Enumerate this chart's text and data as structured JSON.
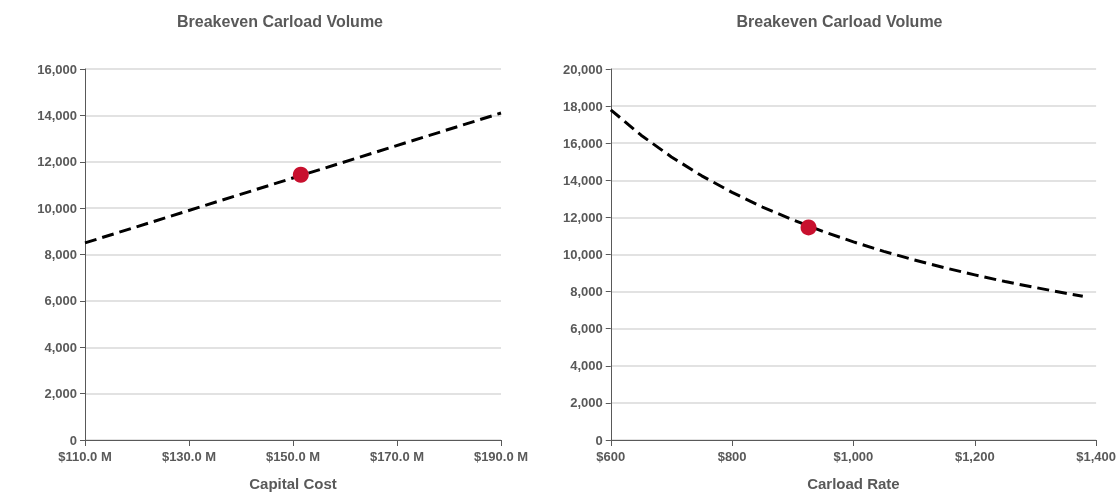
{
  "chart_data": [
    {
      "type": "line",
      "title": "Breakeven Carload Volume",
      "xlabel": "Capital Cost",
      "xlim": [
        110,
        190
      ],
      "xticks": [
        {
          "value": 110,
          "label": "$110.0 M"
        },
        {
          "value": 130,
          "label": "$130.0 M"
        },
        {
          "value": 150,
          "label": "$150.0 M"
        },
        {
          "value": 170,
          "label": "$170.0 M"
        },
        {
          "value": 190,
          "label": "$190.0 M"
        }
      ],
      "ylim": [
        0,
        16000
      ],
      "yticks": [
        {
          "value": 0,
          "label": "0"
        },
        {
          "value": 2000,
          "label": "2,000"
        },
        {
          "value": 4000,
          "label": "4,000"
        },
        {
          "value": 6000,
          "label": "6,000"
        },
        {
          "value": 8000,
          "label": "8,000"
        },
        {
          "value": 10000,
          "label": "10,000"
        },
        {
          "value": 12000,
          "label": "12,000"
        },
        {
          "value": 14000,
          "label": "14,000"
        },
        {
          "value": 16000,
          "label": "16,000"
        }
      ],
      "grid": "y",
      "series": [
        {
          "color": "#000000",
          "line_style": "dashed",
          "marker": "none",
          "x": [
            110,
            190
          ],
          "values": [
            8500,
            14100
          ]
        },
        {
          "type": "scatter",
          "color": "#c8102e",
          "marker": "circle",
          "x": [
            151.5
          ],
          "values": [
            11440
          ]
        }
      ]
    },
    {
      "type": "line",
      "title": "Breakeven Carload Volume",
      "xlabel": "Carload Rate",
      "xlim": [
        600,
        1400
      ],
      "xticks": [
        {
          "value": 600,
          "label": "$600"
        },
        {
          "value": 800,
          "label": "$800"
        },
        {
          "value": 1000,
          "label": "$1,000"
        },
        {
          "value": 1200,
          "label": "$1,200"
        },
        {
          "value": 1400,
          "label": "$1,400"
        }
      ],
      "ylim": [
        0,
        20000
      ],
      "yticks": [
        {
          "value": 0,
          "label": "0"
        },
        {
          "value": 2000,
          "label": "2,000"
        },
        {
          "value": 4000,
          "label": "4,000"
        },
        {
          "value": 6000,
          "label": "6,000"
        },
        {
          "value": 8000,
          "label": "8,000"
        },
        {
          "value": 10000,
          "label": "10,000"
        },
        {
          "value": 12000,
          "label": "12,000"
        },
        {
          "value": 14000,
          "label": "14,000"
        },
        {
          "value": 16000,
          "label": "16,000"
        },
        {
          "value": 18000,
          "label": "18,000"
        },
        {
          "value": 20000,
          "label": "20,000"
        }
      ],
      "grid": "y",
      "series": [
        {
          "color": "#000000",
          "line_style": "dashed",
          "marker": "none",
          "x": [
            600,
            650,
            700,
            750,
            800,
            850,
            900,
            950,
            1000,
            1050,
            1100,
            1150,
            1200,
            1250,
            1300,
            1350,
            1378
          ],
          "values": [
            17800,
            16430,
            15260,
            14240,
            13350,
            12560,
            11870,
            11240,
            10680,
            10170,
            9710,
            9290,
            8900,
            8540,
            8220,
            7910,
            7750
          ]
        },
        {
          "type": "scatter",
          "color": "#c8102e",
          "marker": "circle",
          "x": [
            926
          ],
          "values": [
            11460
          ]
        }
      ]
    }
  ]
}
